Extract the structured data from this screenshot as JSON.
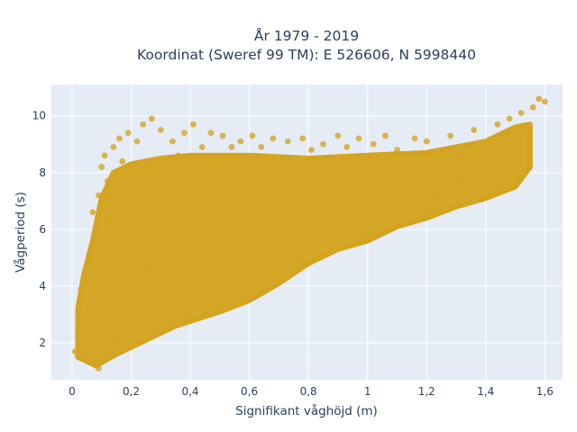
{
  "chart_data": {
    "type": "scatter",
    "title_lines": [
      "År 1979 - 2019",
      "Koordinat (Sweref 99 TM): E 526606, N 5998440"
    ],
    "xlabel": "Signifikant våghöjd (m)",
    "ylabel": "Vågperiod (s)",
    "xlim": [
      -0.07,
      1.66
    ],
    "ylim": [
      0.7,
      11.1
    ],
    "x_ticks": [
      0,
      0.2,
      0.4,
      0.6,
      0.8,
      1,
      1.2,
      1.4,
      1.6
    ],
    "x_tick_labels": [
      "0",
      "0,2",
      "0,4",
      "0,6",
      "0,8",
      "1",
      "1,2",
      "1,4",
      "1,6"
    ],
    "y_ticks": [
      2,
      4,
      6,
      8,
      10
    ],
    "y_tick_labels": [
      "2",
      "4",
      "6",
      "8",
      "10"
    ],
    "grid": true,
    "marker_color": "#d4a420",
    "plot_background": "#e5ecf6",
    "points": [
      [
        0.01,
        1.7
      ],
      [
        0.02,
        2.2
      ],
      [
        0.03,
        1.6
      ],
      [
        0.03,
        3.9
      ],
      [
        0.04,
        2.8
      ],
      [
        0.05,
        4.2
      ],
      [
        0.05,
        1.4
      ],
      [
        0.06,
        5.0
      ],
      [
        0.07,
        6.6
      ],
      [
        0.07,
        1.3
      ],
      [
        0.08,
        5.9
      ],
      [
        0.08,
        2.0
      ],
      [
        0.09,
        7.2
      ],
      [
        0.09,
        1.1
      ],
      [
        0.1,
        8.2
      ],
      [
        0.1,
        3.4
      ],
      [
        0.11,
        8.6
      ],
      [
        0.12,
        7.7
      ],
      [
        0.12,
        1.8
      ],
      [
        0.13,
        6.3
      ],
      [
        0.14,
        8.9
      ],
      [
        0.14,
        1.6
      ],
      [
        0.15,
        7.1
      ],
      [
        0.16,
        9.2
      ],
      [
        0.16,
        2.1
      ],
      [
        0.17,
        8.4
      ],
      [
        0.18,
        5.6
      ],
      [
        0.19,
        9.4
      ],
      [
        0.2,
        2.3
      ],
      [
        0.2,
        7.9
      ],
      [
        0.21,
        6.4
      ],
      [
        0.22,
        9.1
      ],
      [
        0.23,
        2.5
      ],
      [
        0.24,
        9.7
      ],
      [
        0.25,
        8.2
      ],
      [
        0.26,
        4.7
      ],
      [
        0.27,
        9.9
      ],
      [
        0.28,
        2.4
      ],
      [
        0.3,
        9.5
      ],
      [
        0.31,
        7.0
      ],
      [
        0.32,
        3.3
      ],
      [
        0.34,
        9.1
      ],
      [
        0.35,
        2.7
      ],
      [
        0.36,
        8.6
      ],
      [
        0.38,
        9.4
      ],
      [
        0.39,
        3.0
      ],
      [
        0.4,
        7.4
      ],
      [
        0.41,
        9.7
      ],
      [
        0.42,
        3.6
      ],
      [
        0.44,
        8.9
      ],
      [
        0.45,
        3.1
      ],
      [
        0.47,
        9.4
      ],
      [
        0.48,
        6.8
      ],
      [
        0.5,
        3.3
      ],
      [
        0.51,
        9.3
      ],
      [
        0.53,
        4.1
      ],
      [
        0.54,
        8.9
      ],
      [
        0.55,
        3.4
      ],
      [
        0.57,
        9.1
      ],
      [
        0.58,
        5.4
      ],
      [
        0.6,
        3.9
      ],
      [
        0.61,
        9.3
      ],
      [
        0.63,
        4.6
      ],
      [
        0.64,
        8.9
      ],
      [
        0.66,
        4.5
      ],
      [
        0.68,
        9.2
      ],
      [
        0.69,
        5.7
      ],
      [
        0.71,
        4.7
      ],
      [
        0.73,
        9.1
      ],
      [
        0.74,
        6.6
      ],
      [
        0.76,
        4.9
      ],
      [
        0.78,
        9.2
      ],
      [
        0.79,
        5.4
      ],
      [
        0.81,
        8.8
      ],
      [
        0.83,
        5.4
      ],
      [
        0.85,
        9.0
      ],
      [
        0.86,
        7.1
      ],
      [
        0.88,
        5.8
      ],
      [
        0.9,
        9.3
      ],
      [
        0.91,
        6.2
      ],
      [
        0.93,
        8.9
      ],
      [
        0.95,
        5.9
      ],
      [
        0.97,
        9.2
      ],
      [
        0.99,
        7.6
      ],
      [
        1.0,
        5.9
      ],
      [
        1.02,
        9.0
      ],
      [
        1.04,
        6.4
      ],
      [
        1.06,
        9.3
      ],
      [
        1.08,
        6.5
      ],
      [
        1.1,
        8.8
      ],
      [
        1.12,
        7.3
      ],
      [
        1.14,
        6.8
      ],
      [
        1.16,
        9.2
      ],
      [
        1.18,
        7.0
      ],
      [
        1.2,
        9.1
      ],
      [
        1.22,
        7.2
      ],
      [
        1.24,
        8.6
      ],
      [
        1.26,
        7.3
      ],
      [
        1.28,
        9.3
      ],
      [
        1.3,
        7.7
      ],
      [
        1.32,
        8.6
      ],
      [
        1.34,
        7.2
      ],
      [
        1.36,
        9.5
      ],
      [
        1.38,
        8.1
      ],
      [
        1.4,
        8.9
      ],
      [
        1.42,
        7.5
      ],
      [
        1.44,
        9.7
      ],
      [
        1.46,
        8.5
      ],
      [
        1.48,
        9.9
      ],
      [
        1.5,
        9.0
      ],
      [
        1.52,
        10.1
      ],
      [
        1.54,
        9.6
      ],
      [
        1.56,
        10.3
      ],
      [
        1.58,
        10.6
      ],
      [
        1.6,
        10.5
      ],
      [
        1.55,
        8.4
      ]
    ]
  }
}
